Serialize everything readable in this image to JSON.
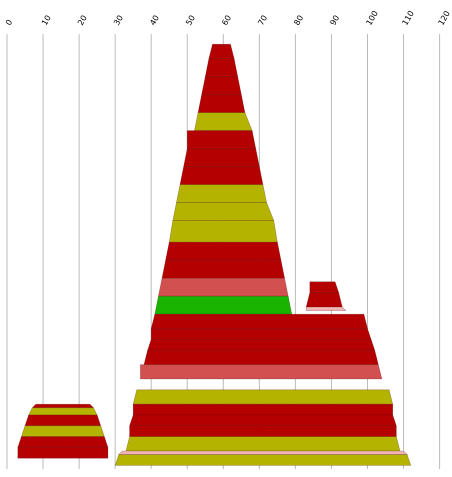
{
  "chart_data": {
    "type": "area",
    "orientation": "stacked-band silhouettes on a vertical-gridline x scale",
    "xlim": [
      0,
      120
    ],
    "x_ticks": [
      "0",
      "10",
      "20",
      "30",
      "40",
      "50",
      "60",
      "70",
      "80",
      "90",
      "100",
      "110",
      "120"
    ],
    "grid": true,
    "tick_label_rotation": "-60deg",
    "tick_position": "top",
    "colors": {
      "red": "#b40000",
      "olive": "#b4b400",
      "salmon": "#d25050",
      "green": "#18b400",
      "pink": "#f0b4b4"
    },
    "shapes": [
      {
        "name": "small-stack",
        "bands": [
          {
            "top": 18,
            "bottom": 17,
            "color": "red",
            "x_top": [
              8,
              23
            ],
            "x_bottom": [
              7,
              24
            ]
          },
          {
            "top": 17,
            "bottom": 15,
            "color": "olive",
            "x_top": [
              7,
              24
            ],
            "x_bottom": [
              6,
              25
            ]
          },
          {
            "top": 15,
            "bottom": 12,
            "color": "red",
            "x_top": [
              6,
              25
            ],
            "x_bottom": [
              5,
              26
            ]
          },
          {
            "top": 12,
            "bottom": 9,
            "color": "olive",
            "x_top": [
              5,
              26
            ],
            "x_bottom": [
              4,
              27
            ]
          },
          {
            "top": 9,
            "bottom": 6,
            "color": "red",
            "x_top": [
              4,
              27
            ],
            "x_bottom": [
              3,
              28
            ]
          },
          {
            "top": 6,
            "bottom": 3,
            "color": "red",
            "x_top": [
              3,
              28
            ],
            "x_bottom": [
              3,
              28
            ]
          }
        ]
      },
      {
        "name": "large-stack",
        "bands": [
          {
            "top": 118,
            "bottom": 114,
            "color": "red",
            "x_top": [
              57,
              62
            ],
            "x_bottom": [
              56,
              63
            ]
          },
          {
            "top": 114,
            "bottom": 109,
            "color": "red",
            "x_top": [
              56,
              63
            ],
            "x_bottom": [
              55,
              64
            ]
          },
          {
            "top": 109,
            "bottom": 104,
            "color": "red",
            "x_top": [
              55,
              64
            ],
            "x_bottom": [
              54,
              65
            ]
          },
          {
            "top": 104,
            "bottom": 99,
            "color": "red",
            "x_top": [
              54,
              65
            ],
            "x_bottom": [
              53,
              66
            ]
          },
          {
            "top": 99,
            "bottom": 94,
            "color": "olive",
            "x_top": [
              53,
              66
            ],
            "x_bottom": [
              52,
              68
            ]
          },
          {
            "top": 94,
            "bottom": 89,
            "color": "red",
            "x_top": [
              50,
              68
            ],
            "x_bottom": [
              50,
              69
            ]
          },
          {
            "top": 89,
            "bottom": 84,
            "color": "red",
            "x_top": [
              50,
              69
            ],
            "x_bottom": [
              49,
              70
            ]
          },
          {
            "top": 84,
            "bottom": 79,
            "color": "red",
            "x_top": [
              49,
              70
            ],
            "x_bottom": [
              48,
              71
            ]
          },
          {
            "top": 79,
            "bottom": 74,
            "color": "olive",
            "x_top": [
              48,
              71
            ],
            "x_bottom": [
              47,
              72
            ]
          },
          {
            "top": 74,
            "bottom": 69,
            "color": "olive",
            "x_top": [
              47,
              72
            ],
            "x_bottom": [
              46,
              74
            ]
          },
          {
            "top": 69,
            "bottom": 63,
            "color": "olive",
            "x_top": [
              46,
              74
            ],
            "x_bottom": [
              45,
              75
            ]
          },
          {
            "top": 63,
            "bottom": 58,
            "color": "red",
            "x_top": [
              45,
              75
            ],
            "x_bottom": [
              44,
              76
            ]
          },
          {
            "top": 58,
            "bottom": 53,
            "color": "red",
            "x_top": [
              44,
              76
            ],
            "x_bottom": [
              43,
              77
            ]
          },
          {
            "top": 53,
            "bottom": 48,
            "color": "salmon",
            "x_top": [
              43,
              77
            ],
            "x_bottom": [
              42,
              78
            ]
          },
          {
            "top": 48,
            "bottom": 43,
            "color": "green",
            "x_top": [
              42,
              78
            ],
            "x_bottom": [
              41,
              79
            ]
          },
          {
            "top": 43,
            "bottom": 39,
            "color": "red",
            "x_top": [
              41,
              99
            ],
            "x_bottom": [
              40,
              100
            ]
          },
          {
            "top": 39,
            "bottom": 36,
            "color": "red",
            "x_top": [
              40,
              100
            ],
            "x_bottom": [
              40,
              101
            ]
          },
          {
            "top": 36,
            "bottom": 33,
            "color": "red",
            "x_top": [
              40,
              101
            ],
            "x_bottom": [
              39,
              102
            ]
          },
          {
            "top": 33,
            "bottom": 29,
            "color": "red",
            "x_top": [
              39,
              102
            ],
            "x_bottom": [
              38,
              103
            ]
          },
          {
            "top": 29,
            "bottom": 25,
            "color": "salmon",
            "x_top": [
              37,
              103
            ],
            "x_bottom": [
              37,
              104
            ]
          },
          {
            "top": 22,
            "bottom": 18,
            "color": "olive",
            "x_top": [
              36,
              106
            ],
            "x_bottom": [
              35,
              107
            ]
          },
          {
            "top": 18,
            "bottom": 15,
            "color": "red",
            "x_top": [
              35,
              107
            ],
            "x_bottom": [
              35,
              107
            ]
          },
          {
            "top": 15,
            "bottom": 12,
            "color": "red",
            "x_top": [
              35,
              107
            ],
            "x_bottom": [
              34,
              108
            ]
          },
          {
            "top": 12,
            "bottom": 9,
            "color": "red",
            "x_top": [
              34,
              108
            ],
            "x_bottom": [
              34,
              108
            ]
          },
          {
            "top": 9,
            "bottom": 5,
            "color": "olive",
            "x_top": [
              34,
              108
            ],
            "x_bottom": [
              33,
              109
            ]
          },
          {
            "top": 5,
            "bottom": 4,
            "color": "pink",
            "x_top": [
              32,
              110
            ],
            "x_bottom": [
              31,
              111
            ]
          },
          {
            "top": 4,
            "bottom": 1,
            "color": "olive",
            "x_top": [
              31,
              111
            ],
            "x_bottom": [
              30,
              112
            ]
          }
        ]
      },
      {
        "name": "side-peak",
        "bands": [
          {
            "top": 52,
            "bottom": 49,
            "color": "red",
            "x_top": [
              84,
              91
            ],
            "x_bottom": [
              84,
              92
            ]
          },
          {
            "top": 49,
            "bottom": 45,
            "color": "red",
            "x_top": [
              84,
              92
            ],
            "x_bottom": [
              83,
              93
            ]
          },
          {
            "top": 45,
            "bottom": 44,
            "color": "pink",
            "x_top": [
              83,
              93
            ],
            "x_bottom": [
              83,
              94
            ]
          }
        ]
      }
    ]
  }
}
